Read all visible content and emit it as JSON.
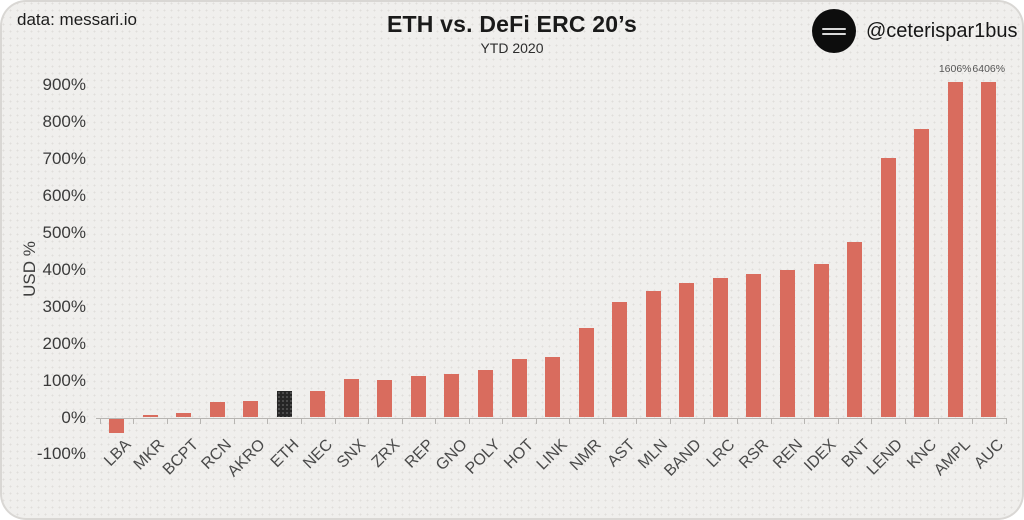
{
  "page": {
    "source_credit": "data: messari.io",
    "handle": "@ceterispar1bus",
    "logo_icon": "equals-lines-icon"
  },
  "chart_data": {
    "type": "bar",
    "title": "ETH vs. DeFi ERC 20’s",
    "subtitle": "YTD 2020",
    "ylabel": "USD %",
    "ylim": [
      -100,
      900
    ],
    "grid": "off",
    "legend": "none",
    "yticks": [
      -100,
      0,
      100,
      200,
      300,
      400,
      500,
      600,
      700,
      800,
      900
    ],
    "ytick_labels": [
      "-100%",
      "0%",
      "100%",
      "200%",
      "300%",
      "400%",
      "500%",
      "600%",
      "700%",
      "800%",
      "900%"
    ],
    "categories": [
      "LBA",
      "MKR",
      "BCPT",
      "RCN",
      "AKRO",
      "ETH",
      "NEC",
      "SNX",
      "ZRX",
      "REP",
      "GNO",
      "POLY",
      "HOT",
      "LINK",
      "NMR",
      "AST",
      "MLN",
      "BAND",
      "LRC",
      "RSR",
      "REN",
      "IDEX",
      "BNT",
      "LEND",
      "KNC",
      "AMPL",
      "AUC"
    ],
    "values": [
      -40,
      8,
      13,
      42,
      46,
      73,
      72,
      104,
      102,
      112,
      119,
      130,
      158,
      163,
      242,
      313,
      344,
      364,
      377,
      388,
      400,
      416,
      476,
      702,
      782,
      1606,
      6406
    ],
    "bar_color": "#d96c5e",
    "highlight_category": "ETH",
    "highlight_color": "#262626",
    "clip_display_max": 908,
    "annotations": [
      {
        "category": "AMPL",
        "label": "1606%"
      },
      {
        "category": "AUC",
        "label": "6406%"
      }
    ]
  }
}
